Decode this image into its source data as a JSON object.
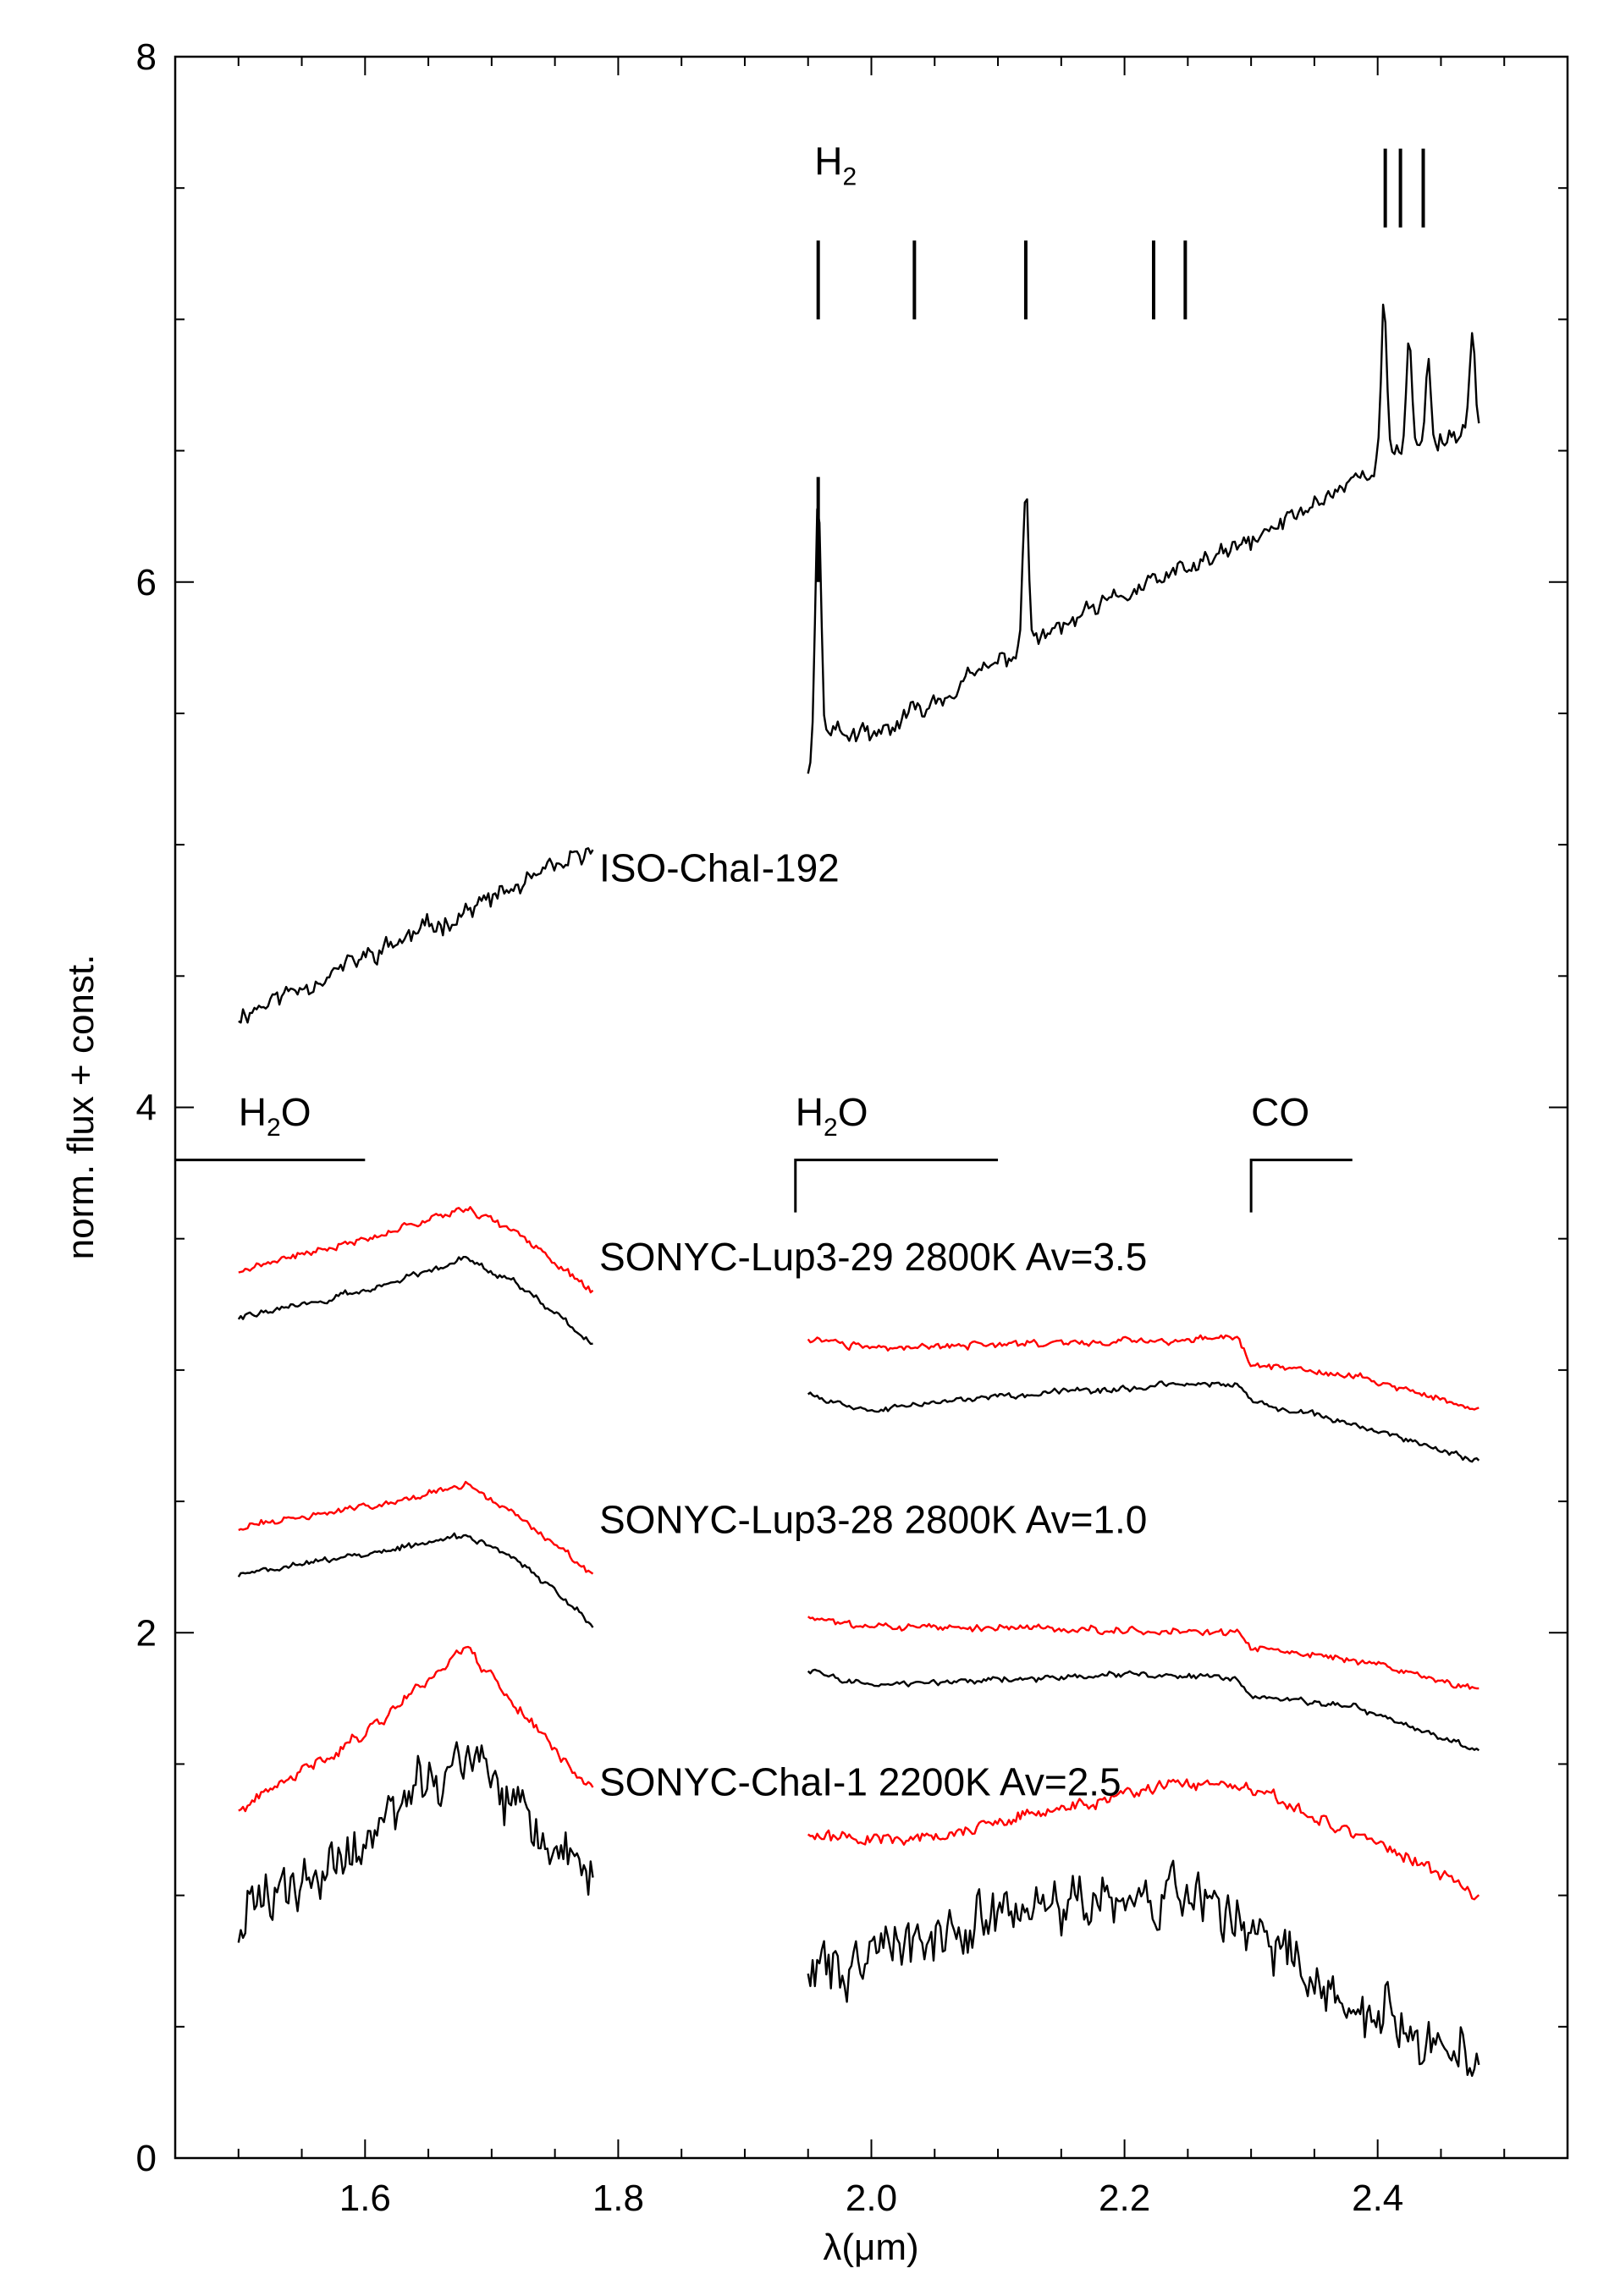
{
  "chart_data": {
    "type": "line",
    "title": "",
    "xlabel": "λ(μm)",
    "ylabel": "norm. flux + const.",
    "xlim": [
      1.45,
      2.55
    ],
    "ylim": [
      0,
      8
    ],
    "x_ticks": [
      {
        "value": 1.6,
        "label": "1.6"
      },
      {
        "value": 1.8,
        "label": "1.8"
      },
      {
        "value": 2.0,
        "label": "2.0"
      },
      {
        "value": 2.2,
        "label": "2.2"
      },
      {
        "value": 2.4,
        "label": "2.4"
      }
    ],
    "y_ticks": [
      {
        "value": 0,
        "label": "0"
      },
      {
        "value": 2,
        "label": "2"
      },
      {
        "value": 4,
        "label": "4"
      },
      {
        "value": 6,
        "label": "6"
      },
      {
        "value": 8,
        "label": "8"
      }
    ],
    "bands": {
      "H": [
        1.5,
        1.78
      ],
      "K": [
        1.95,
        2.48
      ]
    },
    "series": [
      {
        "id": "iso-chai-192",
        "name": "ISO-ChaI-192",
        "color": "#000000",
        "noise": 0.06,
        "seed": 11,
        "H": [
          [
            1.5,
            4.35
          ],
          [
            1.78,
            4.97
          ]
        ],
        "K": [
          [
            1.95,
            5.3
          ],
          [
            1.96,
            5.45
          ],
          [
            2.0,
            5.4
          ],
          [
            2.05,
            5.55
          ],
          [
            2.12,
            5.75
          ],
          [
            2.2,
            5.95
          ],
          [
            2.3,
            6.15
          ],
          [
            2.4,
            6.45
          ],
          [
            2.48,
            6.6
          ]
        ],
        "spikes": [
          {
            "x": 1.958,
            "height": 0.9
          },
          {
            "x": 2.122,
            "height": 0.6
          },
          {
            "x": 2.405,
            "height": 0.6
          },
          {
            "x": 2.425,
            "height": 0.45
          },
          {
            "x": 2.44,
            "height": 0.3
          },
          {
            "x": 2.475,
            "height": 0.35
          }
        ]
      },
      {
        "id": "lup3-29-model",
        "name": "SONYC-Lup3-29 model",
        "color": "#ff0000",
        "noise": 0.02,
        "seed": 21,
        "H": [
          [
            1.5,
            3.38
          ],
          [
            1.6,
            3.5
          ],
          [
            1.68,
            3.62
          ],
          [
            1.72,
            3.52
          ],
          [
            1.78,
            3.3
          ]
        ],
        "K": [
          [
            1.95,
            3.12
          ],
          [
            2.0,
            3.08
          ],
          [
            2.1,
            3.1
          ],
          [
            2.2,
            3.11
          ],
          [
            2.29,
            3.12
          ],
          [
            2.3,
            3.02
          ],
          [
            2.38,
            2.98
          ],
          [
            2.48,
            2.85
          ]
        ]
      },
      {
        "id": "lup3-29-obs",
        "name": "SONYC-Lup3-29 observed",
        "color": "#000000",
        "noise": 0.018,
        "seed": 22,
        "H": [
          [
            1.5,
            3.2
          ],
          [
            1.6,
            3.3
          ],
          [
            1.68,
            3.43
          ],
          [
            1.72,
            3.33
          ],
          [
            1.78,
            3.1
          ]
        ],
        "K": [
          [
            1.95,
            2.9
          ],
          [
            2.0,
            2.85
          ],
          [
            2.1,
            2.9
          ],
          [
            2.2,
            2.93
          ],
          [
            2.29,
            2.95
          ],
          [
            2.3,
            2.88
          ],
          [
            2.38,
            2.8
          ],
          [
            2.48,
            2.65
          ]
        ]
      },
      {
        "id": "lup3-28-model",
        "name": "SONYC-Lup3-28 model",
        "color": "#ff0000",
        "noise": 0.02,
        "seed": 31,
        "H": [
          [
            1.5,
            2.4
          ],
          [
            1.6,
            2.48
          ],
          [
            1.68,
            2.56
          ],
          [
            1.72,
            2.45
          ],
          [
            1.78,
            2.22
          ]
        ],
        "K": [
          [
            1.95,
            2.05
          ],
          [
            2.0,
            2.02
          ],
          [
            2.1,
            2.02
          ],
          [
            2.2,
            2.01
          ],
          [
            2.29,
            2.0
          ],
          [
            2.3,
            1.94
          ],
          [
            2.38,
            1.9
          ],
          [
            2.48,
            1.78
          ]
        ]
      },
      {
        "id": "lup3-28-obs",
        "name": "SONYC-Lup3-28 observed",
        "color": "#000000",
        "noise": 0.018,
        "seed": 32,
        "H": [
          [
            1.5,
            2.22
          ],
          [
            1.6,
            2.3
          ],
          [
            1.68,
            2.37
          ],
          [
            1.72,
            2.28
          ],
          [
            1.78,
            2.03
          ]
        ],
        "K": [
          [
            1.95,
            1.85
          ],
          [
            2.0,
            1.8
          ],
          [
            2.1,
            1.82
          ],
          [
            2.2,
            1.84
          ],
          [
            2.29,
            1.83
          ],
          [
            2.3,
            1.76
          ],
          [
            2.38,
            1.72
          ],
          [
            2.48,
            1.55
          ]
        ]
      },
      {
        "id": "chai-1-model",
        "name": "SONYC-ChaI-1 model",
        "color": "#ff0000",
        "noise": 0.035,
        "seed": 41,
        "H": [
          [
            1.5,
            1.32
          ],
          [
            1.6,
            1.62
          ],
          [
            1.68,
            1.95
          ],
          [
            1.72,
            1.72
          ],
          [
            1.78,
            1.4
          ]
        ],
        "K": [
          [
            1.95,
            1.22
          ],
          [
            2.05,
            1.22
          ],
          [
            2.15,
            1.33
          ],
          [
            2.25,
            1.43
          ],
          [
            2.3,
            1.4
          ],
          [
            2.4,
            1.2
          ],
          [
            2.48,
            1.0
          ]
        ]
      },
      {
        "id": "chai-1-obs",
        "name": "SONYC-ChaI-1 observed",
        "color": "#000000",
        "noise": 0.17,
        "seed": 42,
        "H": [
          [
            1.5,
            0.9
          ],
          [
            1.6,
            1.2
          ],
          [
            1.68,
            1.55
          ],
          [
            1.72,
            1.3
          ],
          [
            1.78,
            1.05
          ]
        ],
        "K": [
          [
            1.95,
            0.7
          ],
          [
            2.05,
            0.85
          ],
          [
            2.15,
            0.95
          ],
          [
            2.25,
            1.0
          ],
          [
            2.3,
            0.85
          ],
          [
            2.4,
            0.55
          ],
          [
            2.48,
            0.35
          ]
        ]
      }
    ],
    "labels": [
      {
        "id": "label-iso-chai-192",
        "text": "ISO-ChaI-192",
        "x": 1.785,
        "y": 4.86
      },
      {
        "id": "label-lup3-29",
        "text": "SONYC-Lup3-29  2800K Av=3.5",
        "x": 1.785,
        "y": 3.38
      },
      {
        "id": "label-lup3-28",
        "text": "SONYC-Lup3-28  2800K Av=1.0",
        "x": 1.785,
        "y": 2.38
      },
      {
        "id": "label-chai-1",
        "text": "SONYC-ChaI-1  2200K Av=2.5",
        "x": 1.785,
        "y": 1.38
      }
    ],
    "h2_label": {
      "main": "H",
      "sub": "2",
      "x": 1.955,
      "y": 7.55
    },
    "h2_ticks": [
      {
        "x": 1.958,
        "y0": 7.0,
        "y1": 7.3
      },
      {
        "x": 2.034,
        "y0": 7.0,
        "y1": 7.3
      },
      {
        "x": 2.122,
        "y0": 7.0,
        "y1": 7.3
      },
      {
        "x": 2.223,
        "y0": 7.0,
        "y1": 7.3
      },
      {
        "x": 2.248,
        "y0": 7.0,
        "y1": 7.3
      },
      {
        "x": 2.406,
        "y0": 7.35,
        "y1": 7.65
      },
      {
        "x": 2.418,
        "y0": 7.35,
        "y1": 7.65
      },
      {
        "x": 2.436,
        "y0": 7.35,
        "y1": 7.65
      },
      {
        "x": 1.958,
        "y0": 6.0,
        "y1": 6.4
      }
    ],
    "band_markers": [
      {
        "id": "h2o-left",
        "main": "H",
        "sub": "2",
        "tail": "O",
        "x_text": 1.5,
        "y_text": 3.93,
        "x0": 1.45,
        "x1": 1.6,
        "drop_x": null
      },
      {
        "id": "h2o-right",
        "main": "H",
        "sub": "2",
        "tail": "O",
        "x_text": 1.94,
        "y_text": 3.93,
        "x0": 1.94,
        "x1": 2.1,
        "drop_x": 1.94
      },
      {
        "id": "co",
        "main": "CO",
        "sub": "",
        "tail": "",
        "x_text": 2.3,
        "y_text": 3.93,
        "x0": 2.3,
        "x1": 2.38,
        "drop_x": 2.3
      }
    ],
    "band_marker_y": 3.8,
    "band_marker_drop": 0.2
  }
}
